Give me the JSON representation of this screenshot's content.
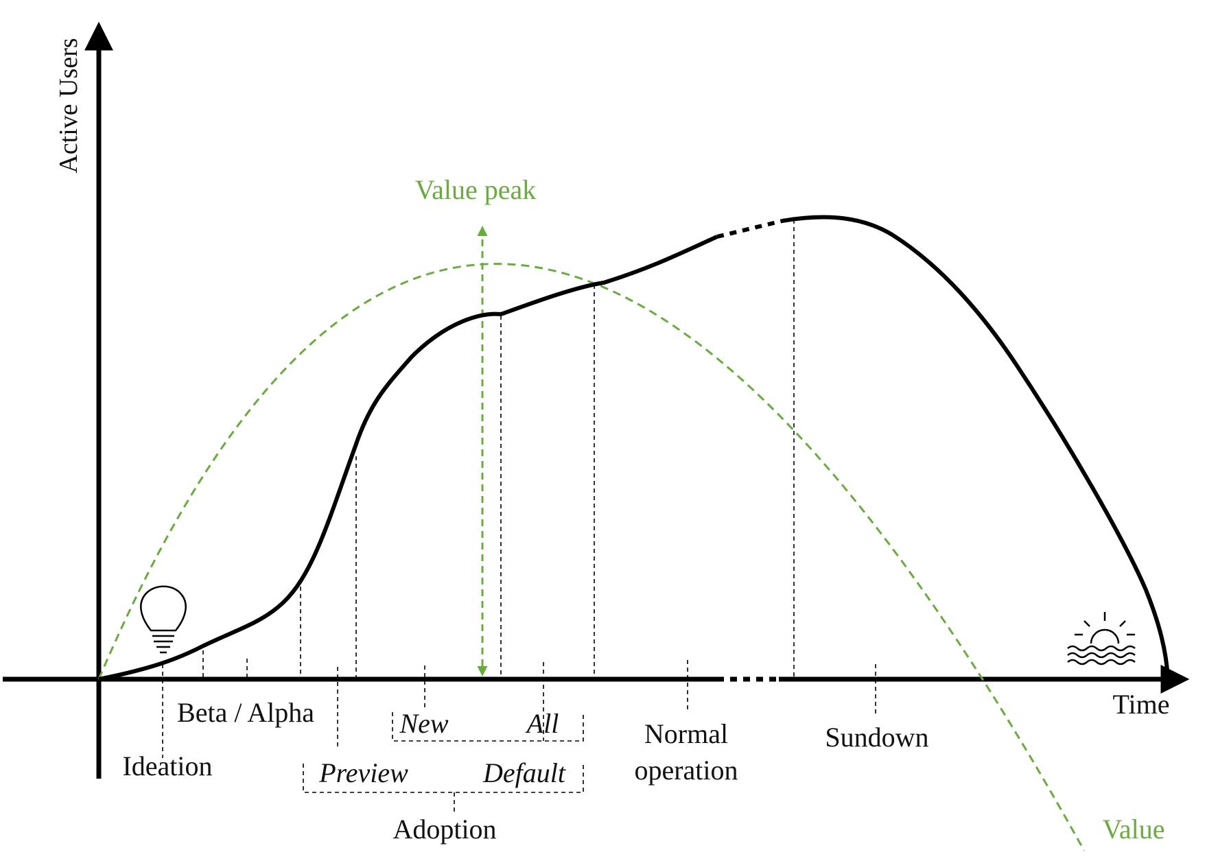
{
  "axes": {
    "y_label": "Active Users",
    "x_label": "Time"
  },
  "curves": {
    "value_label": "Value",
    "value_peak_label": "Value peak"
  },
  "phases": {
    "ideation": "Ideation",
    "beta_alpha": "Beta / Alpha",
    "new": "New",
    "all": "All",
    "preview": "Preview",
    "default": "Default",
    "adoption": "Adoption",
    "normal_operation_line1": "Normal",
    "normal_operation_line2": "operation",
    "sundown": "Sundown"
  },
  "icons": {
    "start": "lightbulb-icon",
    "end": "sunset-icon"
  },
  "colors": {
    "curve": "#000000",
    "value": "#6aab3e"
  }
}
